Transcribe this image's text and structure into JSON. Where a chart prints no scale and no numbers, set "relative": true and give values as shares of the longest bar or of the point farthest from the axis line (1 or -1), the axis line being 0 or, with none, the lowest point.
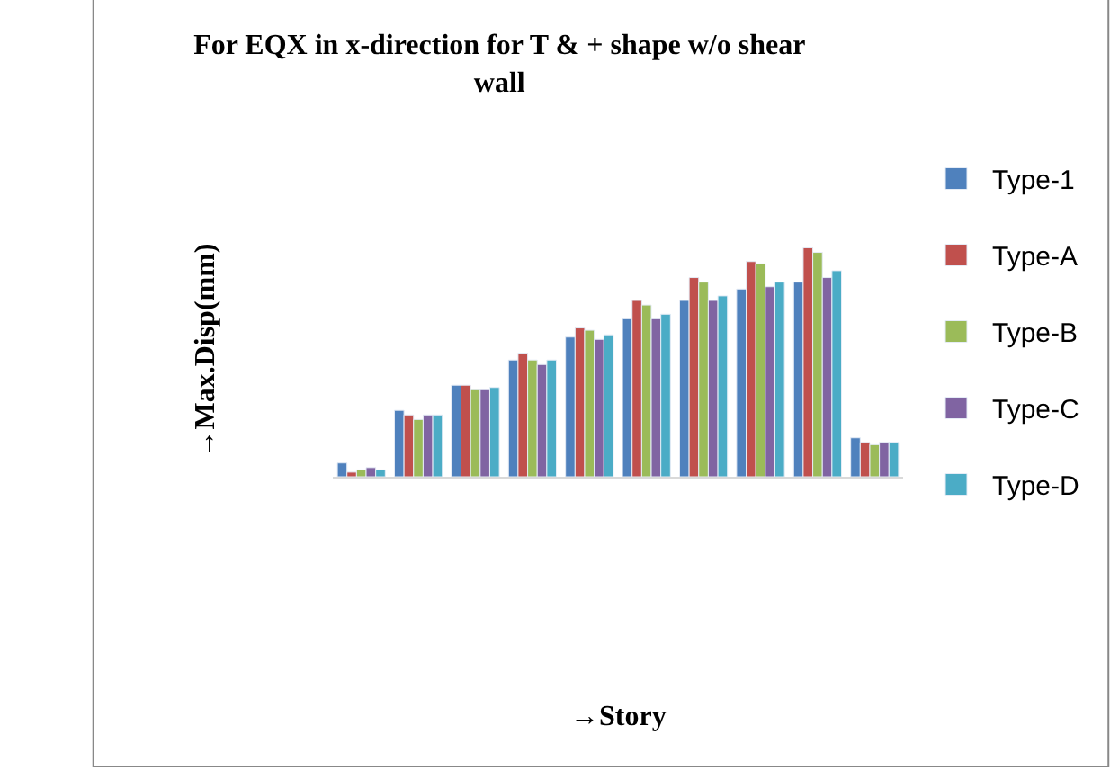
{
  "chart_data": {
    "type": "bar",
    "title": "For EQX in x-direction for T & + shape w/o shear wall",
    "annotations": [
      "→Story"
    ],
    "ylabel": "→Max.Disp(mm)",
    "relative": true,
    "legend": "right",
    "categories": [
      null,
      null,
      null,
      null,
      null,
      null,
      null,
      null,
      null,
      null
    ],
    "series": [
      {
        "name": "Type-1",
        "color": "#4f81bd",
        "values": [
          0.06,
          0.29,
          0.4,
          0.51,
          0.61,
          0.69,
          0.77,
          0.82,
          0.85,
          0.17
        ]
      },
      {
        "name": "Type-A",
        "color": "#c0504d",
        "values": [
          0.02,
          0.27,
          0.4,
          0.54,
          0.65,
          0.77,
          0.87,
          0.94,
          1,
          0.15
        ]
      },
      {
        "name": "Type-B",
        "color": "#9bbb59",
        "values": [
          0.03,
          0.25,
          0.38,
          0.51,
          0.64,
          0.75,
          0.85,
          0.93,
          0.98,
          0.14
        ]
      },
      {
        "name": "Type-C",
        "color": "#8064a2",
        "values": [
          0.04,
          0.27,
          0.38,
          0.49,
          0.6,
          0.69,
          0.77,
          0.83,
          0.87,
          0.15
        ]
      },
      {
        "name": "Type-D",
        "color": "#4bacc6",
        "values": [
          0.03,
          0.27,
          0.39,
          0.51,
          0.62,
          0.71,
          0.79,
          0.85,
          0.9,
          0.15
        ]
      }
    ]
  }
}
